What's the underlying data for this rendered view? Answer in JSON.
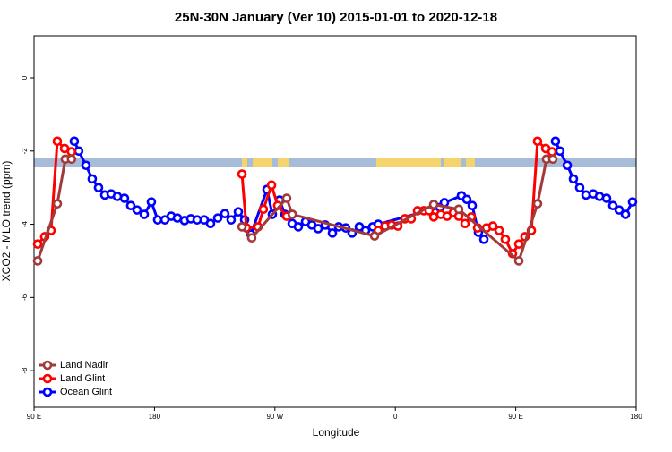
{
  "chart_data": {
    "type": "line",
    "title": "25N-30N January (Ver 10)   2015-01-01 to 2020-12-18",
    "x_label": "Longitude",
    "y_label": "XCO2 - MLO trend (ppm)",
    "xlim": [
      90,
      540
    ],
    "xticks": [
      {
        "value": 90,
        "label": "90 E"
      },
      {
        "value": 180,
        "label": "180"
      },
      {
        "value": 270,
        "label": "90 W"
      },
      {
        "value": 360,
        "label": "0"
      },
      {
        "value": 450,
        "label": "90 E"
      },
      {
        "value": 540,
        "label": "180"
      }
    ],
    "ylim": [
      -9,
      1.15
    ],
    "yticks": [
      0,
      -2,
      -4,
      -6,
      -8
    ],
    "legend": "bottom-left",
    "series": [
      {
        "name": "Land Nadir",
        "color": "#a33a3a",
        "x": [
          92.7,
          107.4,
          113.4,
          118,
          180,
          245.4,
          252.7,
          278.8,
          283,
          344.5,
          388.7,
          407.4,
          452.3,
          466.3,
          473,
          477.7
        ],
        "values": [
          -5.0,
          -3.44,
          -2.22,
          -2.22,
          null,
          -4.07,
          -4.37,
          -3.29,
          -3.73,
          -4.32,
          -3.46,
          -3.59,
          -5.0,
          -3.44,
          -2.22,
          -2.22
        ]
      },
      {
        "name": "Land Glint",
        "color": "#ff0000",
        "x": [
          92.7,
          98,
          102.7,
          107.4,
          112.8,
          118,
          180,
          245.4,
          248.7,
          257.4,
          261.4,
          267.5,
          272.1,
          278.8,
          283,
          320,
          347.2,
          352.5,
          357.2,
          361.9,
          367.2,
          371.9,
          376.6,
          381.3,
          385.3,
          388.7,
          394,
          398.7,
          403.4,
          407.4,
          412.1,
          416.8,
          421.5,
          428.2,
          432.9,
          437.6,
          442.2,
          447.6,
          452.3,
          456.9,
          461.7,
          466.3,
          472.4,
          477.1
        ],
        "values": [
          -4.54,
          -4.34,
          -4.17,
          -1.73,
          -1.93,
          -2.02,
          null,
          -2.63,
          -4.1,
          -4.07,
          -3.59,
          -2.93,
          -3.49,
          -3.78,
          -3.73,
          null,
          -4.17,
          -4.05,
          -4.02,
          -4.05,
          -3.85,
          -3.85,
          -3.63,
          -3.63,
          -3.63,
          -3.8,
          -3.73,
          -3.78,
          -3.68,
          -3.78,
          -3.98,
          -3.8,
          -4.1,
          -4.1,
          -4.05,
          -4.17,
          -4.41,
          -4.8,
          -4.54,
          -4.34,
          -4.17,
          -1.73,
          -1.93,
          -2.02
        ]
      },
      {
        "name": "Ocean Glint",
        "color": "#0000ff",
        "x": [
          120.1,
          123.4,
          128.8,
          133.5,
          138.2,
          142.9,
          147.6,
          152.3,
          157.6,
          162.3,
          167,
          172.4,
          177.7,
          182.4,
          187.8,
          192.5,
          197.1,
          202.5,
          207.2,
          211.9,
          217.2,
          221.9,
          227.3,
          232.6,
          237.3,
          242.7,
          247.4,
          252.1,
          264.1,
          268.1,
          273.5,
          277.5,
          282.9,
          287.5,
          292.9,
          297.6,
          302.3,
          307.6,
          313,
          317.7,
          323,
          327.7,
          333.1,
          337.8,
          343.1,
          347.2,
          393.4,
          396.7,
          409.4,
          413.4,
          417.5,
          422.1,
          426.2,
          450,
          479.7,
          483,
          488.5,
          493.1,
          497.8,
          502.5,
          507.9,
          512.6,
          517.9,
          522.6,
          527.3,
          532,
          537.3
        ],
        "values": [
          -1.73,
          -2.0,
          -2.39,
          -2.76,
          -3.0,
          -3.2,
          -3.17,
          -3.24,
          -3.29,
          -3.49,
          -3.61,
          -3.73,
          -3.39,
          -3.88,
          -3.88,
          -3.78,
          -3.83,
          -3.9,
          -3.85,
          -3.88,
          -3.88,
          -3.98,
          -3.83,
          -3.71,
          -3.88,
          -3.66,
          -3.88,
          -4.27,
          -3.05,
          -3.73,
          -3.34,
          -3.73,
          -3.98,
          -4.07,
          -3.93,
          -4.02,
          -4.12,
          -4.02,
          -4.24,
          -4.07,
          -4.1,
          -4.24,
          -4.07,
          -4.17,
          -4.07,
          -4.0,
          -3.54,
          -3.41,
          -3.22,
          -3.32,
          -3.49,
          -4.22,
          -4.41,
          null,
          -1.73,
          -2.0,
          -2.39,
          -2.76,
          -3.0,
          -3.2,
          -3.17,
          -3.24,
          -3.29,
          -3.49,
          -3.61,
          -3.73,
          -3.39
        ]
      }
    ]
  }
}
